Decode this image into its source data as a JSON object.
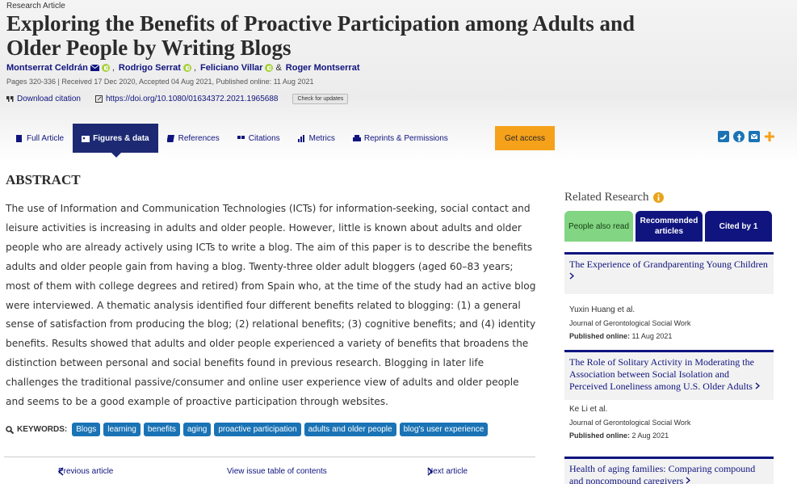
{
  "header": {
    "article_type": "Research Article",
    "title": "Exploring the Benefits of Proactive Participation among Adults and Older People by Writing Blogs",
    "authors": [
      "Montserrat Celdrán",
      "Rodrigo Serrat",
      "Feliciano Villar",
      "Roger Montserrat"
    ],
    "author_separators": [
      ",",
      ",",
      "&"
    ],
    "meta": "Pages 320-336 | Received 17 Dec 2020, Accepted 04 Aug 2021, Published online: 11 Aug 2021",
    "download_citation": "Download citation",
    "doi": "https://doi.org/10.1080/01634372.2021.1965688",
    "check_updates": "Check for updates"
  },
  "tabs": [
    "Full Article",
    "Figures & data",
    "References",
    "Citations",
    "Metrics",
    "Reprints & Permissions"
  ],
  "get_access": "Get access",
  "abstract": {
    "heading": "ABSTRACT",
    "text": "The use of Information and Communication Technologies (ICTs) for information-seeking, social contact and leisure activities is increasing in adults and older people. However, little is known about adults and older people who are already actively using ICTs to write a blog. The aim of this paper is to describe the benefits adults and older people gain from having a blog. Twenty-three older adult bloggers (aged 60–83 years; most of them with college degrees and retired) from Spain who, at the time of the study had an active blog were interviewed. A thematic analysis identified four different benefits related to blogging: (1) a general sense of satisfaction from producing the blog; (2) relational benefits; (3) cognitive benefits; and (4) identity benefits. Results showed that adults and older people experienced a variety of benefits that broadens the distinction between personal and social benefits found in previous research. Blogging in later life challenges the traditional passive/consumer and online user experience view of adults and older people and seems to be a good example of proactive participation through websites."
  },
  "keywords": {
    "label": "KEYWORDS:",
    "items": [
      "Blogs",
      "learning",
      "benefits",
      "aging",
      "proactive participation",
      "adults and older people",
      "blog's user experience"
    ]
  },
  "nav": {
    "previous": "Previous article",
    "issue": "View issue table of contents",
    "next": "Next article"
  },
  "related": {
    "heading": "Related Research",
    "tabs": [
      "People also read",
      "Recommended articles",
      "Cited by 1"
    ],
    "items": [
      {
        "title": "The Experience of Grandparenting Young Children",
        "authors": "Yuxin Huang et al.",
        "journal": "Journal of Gerontological Social Work",
        "published_label": "Published online:",
        "date": "11 Aug 2021"
      },
      {
        "title": "The Role of Solitary Activity in Moderating the Association between Social Isolation and Perceived Loneliness among U.S. Older Adults",
        "authors": "Ke Li et al.",
        "journal": "Journal of Gerontological Social Work",
        "published_label": "Published online:",
        "date": "2 Aug 2021"
      },
      {
        "title": "Health of aging families: Comparing compound and noncompound caregivers",
        "authors": null,
        "journal": null,
        "published_label": null,
        "date": null
      }
    ]
  }
}
